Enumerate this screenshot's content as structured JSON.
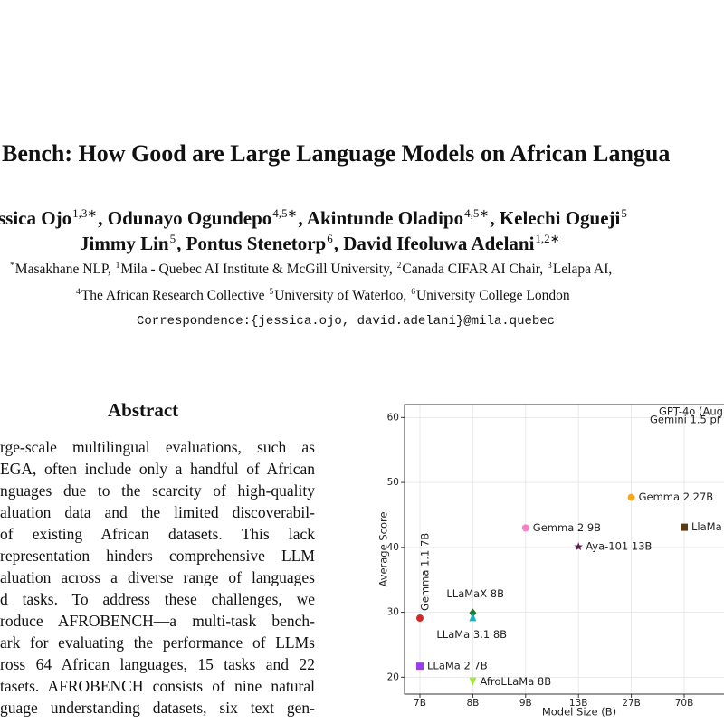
{
  "paper": {
    "title": "Bench: How Good are Large Language Models on African Langua",
    "author_lines": [
      [
        {
          "name": "ssica Ojo",
          "sup": "1,3∗"
        },
        {
          "name": ", Odunayo Ogundepo",
          "sup": "4,5∗"
        },
        {
          "name": ", Akintunde Oladipo",
          "sup": "4,5∗"
        },
        {
          "name": ", Kelechi Ogueji",
          "sup": "5"
        }
      ],
      [
        {
          "name": "Jimmy Lin",
          "sup": "5"
        },
        {
          "name": ", Pontus Stenetorp",
          "sup": "6"
        },
        {
          "name": ", David Ifeoluwa Adelani",
          "sup": "1,2∗"
        }
      ]
    ],
    "affiliation_lines": [
      [
        {
          "sup": "*",
          "text": "Masakhane NLP, "
        },
        {
          "sup": "1",
          "text": "Mila - Quebec AI Institute & McGill University, "
        },
        {
          "sup": "2",
          "text": "Canada CIFAR AI Chair, "
        },
        {
          "sup": "3",
          "text": "Lelapa AI,"
        }
      ],
      [
        {
          "sup": "4",
          "text": "The African Research Collective "
        },
        {
          "sup": "5",
          "text": "University of Waterloo, "
        },
        {
          "sup": "6",
          "text": "University College London"
        }
      ]
    ],
    "correspondence": "Correspondence:{jessica.ojo, david.adelani}@mila.quebec",
    "abstract": {
      "heading": "Abstract",
      "lines": [
        "rge-scale multilingual evaluations, such as",
        "EGA, often include only a handful of African",
        "nguages due to the scarcity of high-quality",
        "aluation data and the limited discoverabil-",
        "of existing African datasets.  This lack",
        "representation hinders comprehensive LLM",
        "aluation across a diverse range of languages",
        "d tasks.  To address these challenges, we",
        "roduce AFROBENCH—a multi-task bench-",
        "ark for evaluating the performance of LLMs",
        "ross 64 African languages, 15 tasks and 22",
        "tasets. AFROBENCH consists of nine natural",
        "guage understanding datasets, six text gen-"
      ]
    }
  },
  "chart_data": {
    "type": "scatter",
    "x_label": "Model Size (B)",
    "y_label": "Average Score",
    "categories": [
      "7B",
      "8B",
      "9B",
      "13B",
      "27B",
      "70B"
    ],
    "ylim": [
      17.4,
      62
    ],
    "yticks": [
      20,
      30,
      40,
      50,
      60
    ],
    "grid": true,
    "points": [
      {
        "label": "Gemma 1.1 7B",
        "x": "7B",
        "y": 29.1,
        "color": "#d62728",
        "marker": "circle"
      },
      {
        "label": "LLaMa 2 7B",
        "x": "7B",
        "y": 21.7,
        "color": "#9b3cf0",
        "marker": "square"
      },
      {
        "label": "LLaMaX 8B",
        "x": "8B",
        "y": 29.9,
        "color": "#1f7a2a",
        "marker": "diamond"
      },
      {
        "label": "LLaMa 3.1 8B",
        "x": "8B",
        "y": 29.2,
        "color": "#17b3c4",
        "marker": "triangle"
      },
      {
        "label": "AfroLLaMa 8B",
        "x": "8B",
        "y": 19.4,
        "color": "#a3e635",
        "marker": "triangle-down"
      },
      {
        "label": "Gemma 2 9B",
        "x": "9B",
        "y": 43.0,
        "color": "#f77fc8",
        "marker": "circle"
      },
      {
        "label": "Aya-101 13B",
        "x": "13B",
        "y": 40.1,
        "color": "#5a1a55",
        "marker": "star"
      },
      {
        "label": "Gemma 2 27B",
        "x": "27B",
        "y": 47.7,
        "color": "#f5a623",
        "marker": "circle"
      },
      {
        "label": "LlaMa",
        "x": "70B",
        "y": 43.1,
        "color": "#5c3a12",
        "marker": "square"
      }
    ],
    "annotations": [
      "GPT-4o (Aug",
      "Gemini 1.5 pr"
    ]
  }
}
